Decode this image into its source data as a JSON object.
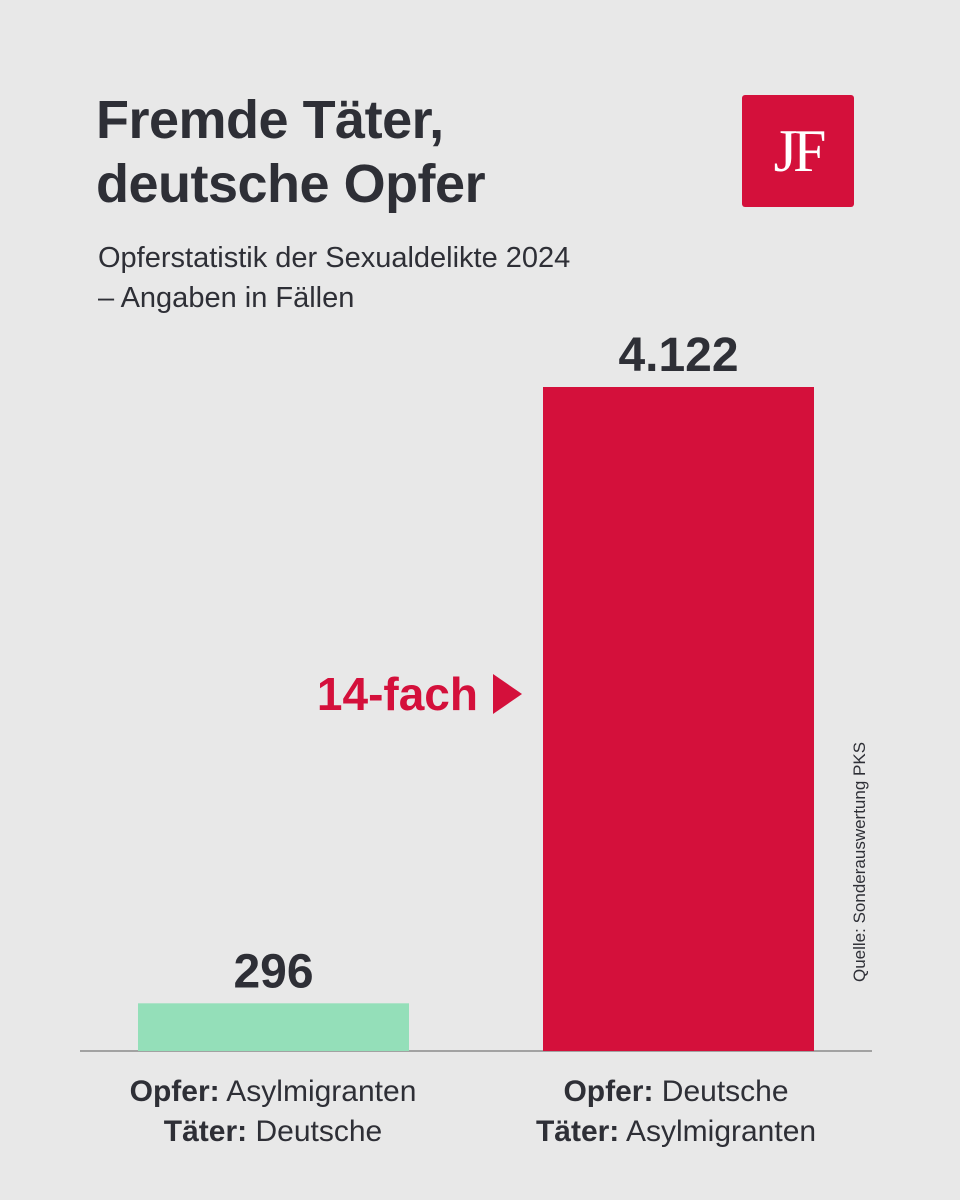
{
  "title": {
    "line1": "Fremde Täter,",
    "line2": "deutsche Opfer"
  },
  "subtitle": {
    "line1": "Opferstatistik der Sexualdelikte 2024",
    "line2": "– Angaben in Fällen"
  },
  "logo": {
    "text": "JF",
    "color": "#d4103b"
  },
  "annotation": {
    "text": "14-fach",
    "color": "#d4103b"
  },
  "source": "Quelle: Sonderauswertung PKS",
  "categories": [
    {
      "opfer_key": "Opfer:",
      "opfer_val": "Asylmigranten",
      "taeter_key": "Täter:",
      "taeter_val": "Deutsche"
    },
    {
      "opfer_key": "Opfer:",
      "opfer_val": "Deutsche",
      "taeter_key": "Täter:",
      "taeter_val": "Asylmigranten"
    }
  ],
  "chart_data": {
    "type": "bar",
    "title": "Fremde Täter, deutsche Opfer",
    "subtitle": "Opferstatistik der Sexualdelikte 2024 – Angaben in Fällen",
    "categories": [
      "Opfer: Asylmigranten / Täter: Deutsche",
      "Opfer: Deutsche / Täter: Asylmigranten"
    ],
    "values": [
      296,
      4122
    ],
    "value_labels": [
      "296",
      "4.122"
    ],
    "colors": [
      "#94dfb9",
      "#d4103b"
    ],
    "ylim": [
      0,
      4122
    ],
    "grid": false,
    "annotation": "14-fach"
  }
}
